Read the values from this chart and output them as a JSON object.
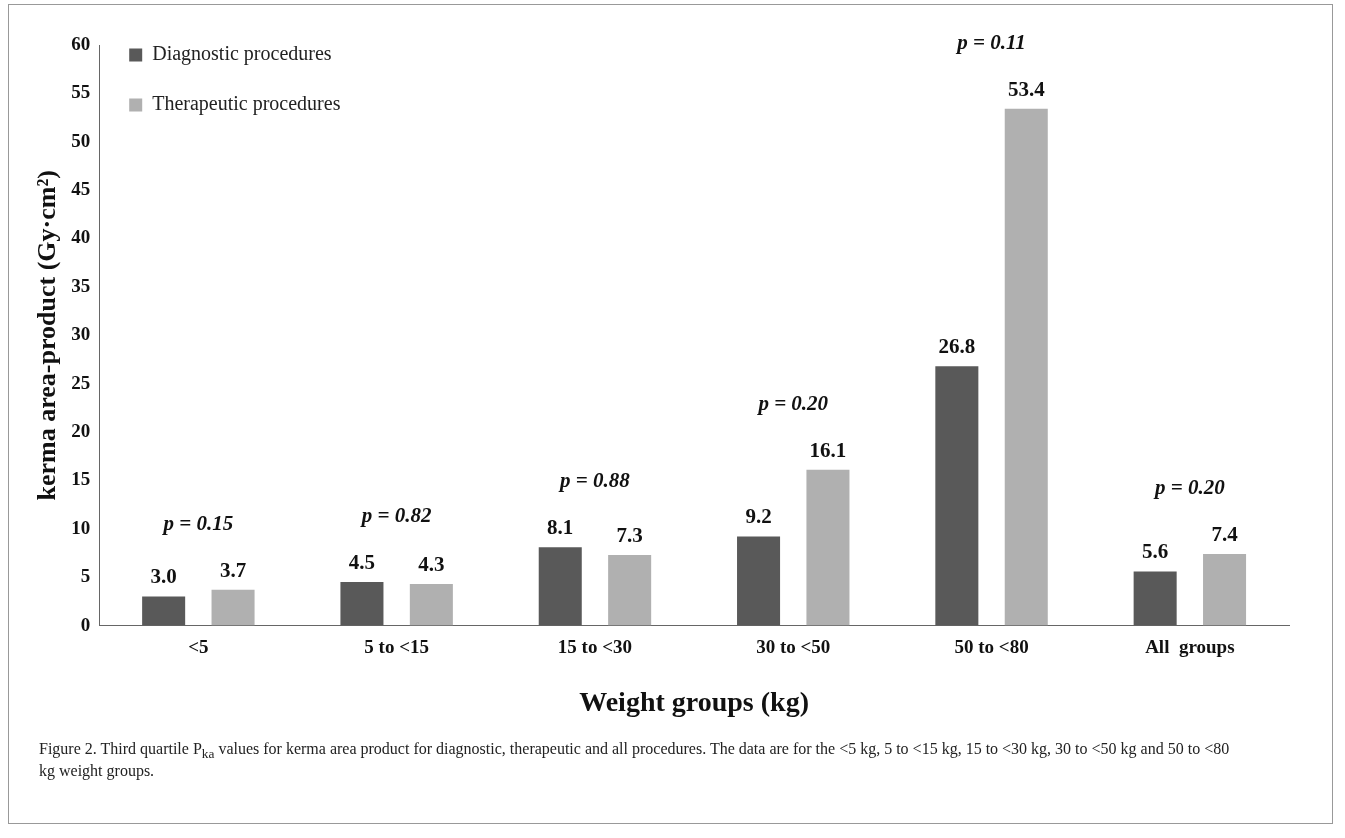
{
  "chart_data": {
    "type": "bar",
    "xlabel": "Weight groups (kg)",
    "ylabel": "kerma area-product (Gy·cm²)",
    "categories": [
      "<5",
      "5 to <15",
      "15 to <30",
      "30 to <50",
      "50 to <80",
      "All  groups"
    ],
    "series": [
      {
        "name": "Diagnostic procedures",
        "color": "#595959",
        "values": [
          3.0,
          4.5,
          8.1,
          9.2,
          26.8,
          5.6
        ],
        "value_labels": [
          "3.0",
          "4.5",
          "8.1",
          "9.2",
          "26.8",
          "5.6"
        ]
      },
      {
        "name": "Therapeutic procedures",
        "color": "#b0b0b0",
        "values": [
          3.7,
          4.3,
          7.3,
          16.1,
          53.4,
          7.4
        ],
        "value_labels": [
          "3.7",
          "4.3",
          "7.3",
          "16.1",
          "53.4",
          "7.4"
        ]
      }
    ],
    "ylim": [
      0,
      60
    ],
    "yticks": [
      0,
      5,
      10,
      15,
      20,
      25,
      30,
      35,
      40,
      45,
      50,
      55,
      60
    ],
    "grid": false,
    "legend": "top left",
    "annotations": [
      "p = 0.15",
      "p = 0.82",
      "p = 0.88",
      "p = 0.20",
      "p = 0.11",
      "p = 0.20",
      "Figure 2. Third quartile P$_{ka}$ values for kerma area product for diagnostic, therapeutic and all procedures. The data are for the <5 kg, 5 to <15 kg, 15 to <30 kg, 30 to <50 kg and 50 to <80 kg weight groups."
    ]
  }
}
